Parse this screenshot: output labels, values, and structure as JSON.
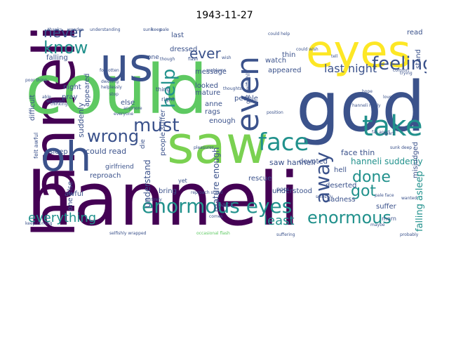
{
  "title": "1943-11-27",
  "palette": {
    "background": "#ffffff",
    "dark_purple": "#440154",
    "blue": "#3b528b",
    "teal": "#21918c",
    "green": "#5ec962",
    "lime": "#7ad151",
    "yellow": "#fde725"
  },
  "words": {
    "hanneli": "hanneli",
    "could": "could",
    "god": "god",
    "saw": "saw",
    "eyes": "eyes",
    "us": "us",
    "oh": "oh",
    "even": "even",
    "take": "take",
    "face": "face",
    "know": "know",
    "never": "never",
    "feeling": "feeling",
    "help": "help",
    "must": "must",
    "wrong": "wrong",
    "enormous_eyes": "enormous eyes",
    "enormous": "enormous",
    "away": "away",
    "done": "done",
    "got": "got",
    "everything": "everything",
    "least": "least",
    "ever": "ever",
    "last_night": "last night",
    "falling_asleep": "falling asleep",
    "hanneli_suddenly": "hanneli suddenly",
    "saw_hanneli": "saw hanneli",
    "face_thin": "face thin",
    "could_read": "could read",
    "mature_enough": "mature enough",
    "understand": "understand",
    "suddenly": "suddenly",
    "appeared": "appeared",
    "dressed": "dressed",
    "message": "message",
    "looked": "looked",
    "mature": "mature",
    "enough": "enough",
    "anne": "anne",
    "rags": "rags",
    "people": "people",
    "people_suffer": "people suffer",
    "devoted": "devoted",
    "deserted": "deserted",
    "misjudged": "misjudged",
    "rescue": "rescue",
    "sadness": "sadness",
    "suffer": "suffer",
    "understood": "understood",
    "reproach": "reproach",
    "bring": "bring",
    "back": "back",
    "asleep": "asleep",
    "pray": "pray",
    "else": "else",
    "one_else": "one else",
    "night": "night",
    "difficult": "difficult",
    "awful": "awful",
    "falling": "falling",
    "last": "last",
    "thin": "thin",
    "watch": "watch",
    "stand": "stand",
    "read": "read",
    "hell": "hell",
    "die": "die",
    "girlfriend": "girlfriend",
    "one": "one",
    "felt_awful": "felt awful",
    "got_selfishly": "got selfishly",
    "poor": "poor",
    "morn": "morn",
    "yet": "yet",
    "thing": "thing",
    "right": "right",
    "forgotten": "forgotten",
    "dwelling": "dwelling",
    "helplessly": "helplessly",
    "though": "though",
    "hope": "hope",
    "love": "love",
    "comfort": "comfort",
    "pleasures": "pleasures",
    "selfishly": "selfishly",
    "position": "position",
    "could_help": "could help",
    "could_wish": "could wish",
    "trying": "trying",
    "probably": "probably",
    "suffering": "suffering",
    "occasional_flash": "occasional flash",
    "selfishly_wrapped": "selfishly wrapped",
    "reproach_stand": "reproach stand",
    "maybe": "maybe",
    "thanks": "thanks",
    "wonder": "wonder",
    "understanding": "understanding",
    "sunk": "sunk",
    "keep": "keep",
    "pale": "pale",
    "far_apart": "far apart",
    "able": "able",
    "thinking": "thinking",
    "flash": "flash",
    "wish": "wish",
    "wrapped": "wrapped",
    "anymore": "anymore",
    "entirely": "entirely",
    "everyone": "everyone",
    "wanted": "wanted",
    "stop": "stop",
    "keep_coming": "keep coming",
    "comes": "comes",
    "poor_thing": "poor thing",
    "hanneli_really": "hanneli really",
    "thoughts": "thoughts",
    "problems": "problems",
    "tell": "tell",
    "apart": "apart",
    "pale_face": "pale face",
    "far": "far",
    "sunk_deep": "sunk deep"
  }
}
